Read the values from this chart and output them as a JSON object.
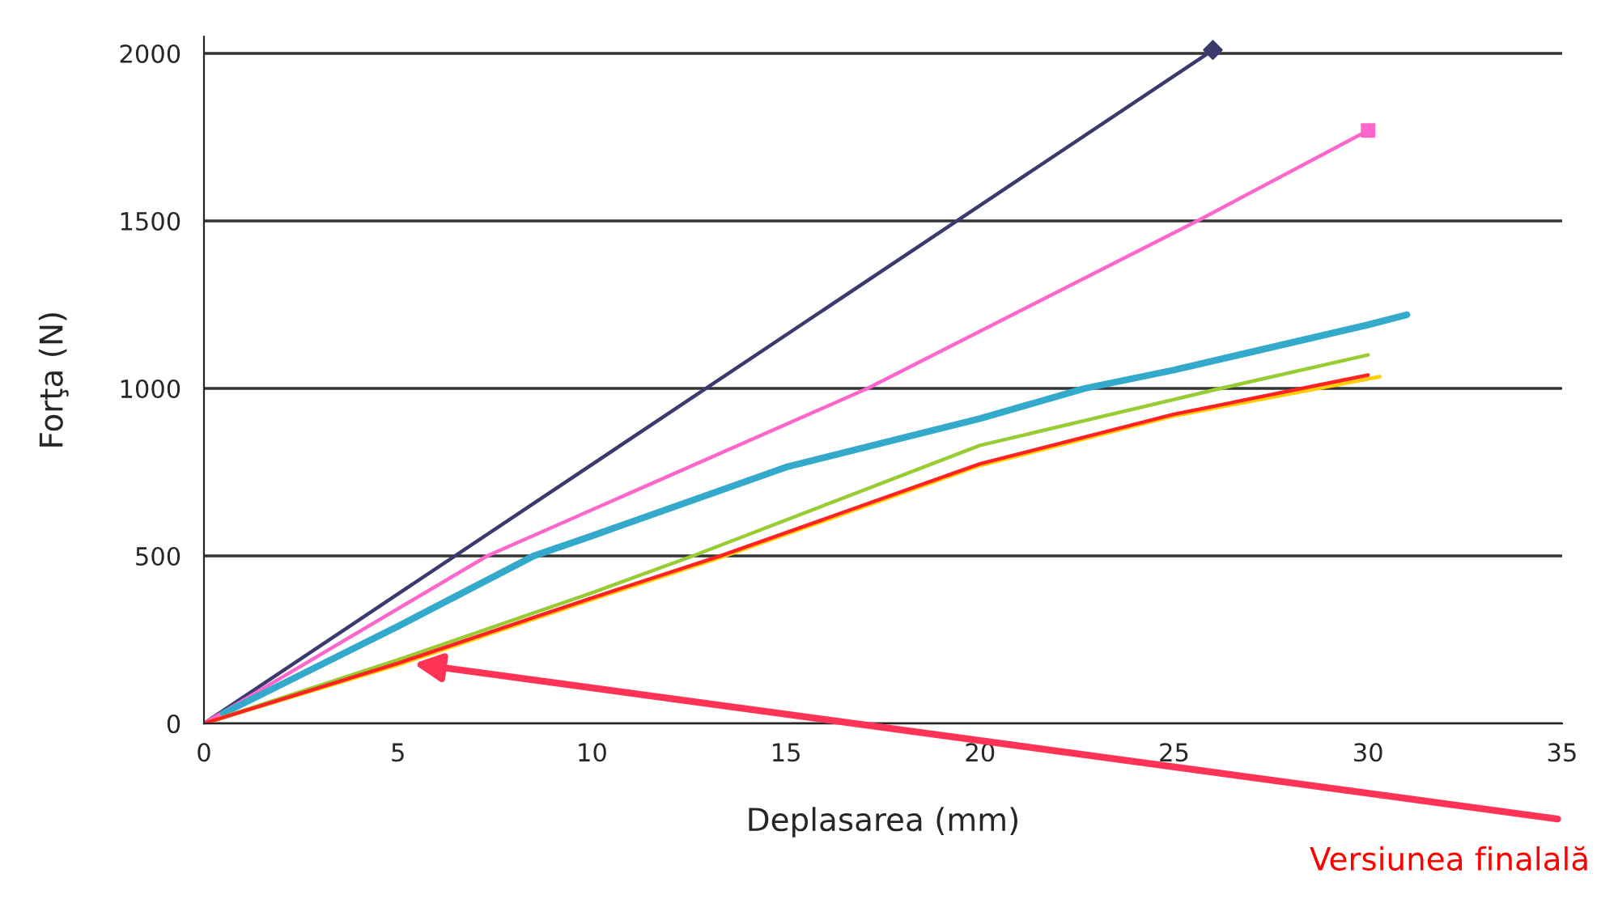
{
  "chart_data": {
    "type": "line",
    "xlabel": "Deplasarea (mm)",
    "ylabel": "Forţa (N)",
    "xlim": [
      0,
      35
    ],
    "ylim": [
      0,
      2050
    ],
    "xticks": [
      0,
      5,
      10,
      15,
      20,
      25,
      30,
      35
    ],
    "yticks": [
      0,
      500,
      1000,
      1500,
      2000
    ],
    "grid": "y",
    "legend": false,
    "series": [
      {
        "color": "#3a3a6e",
        "x": [
          0,
          26
        ],
        "values": [
          0,
          2010
        ]
      },
      {
        "type": "scatter",
        "marker": "diamond",
        "color": "#3a3a6e",
        "x": [
          26
        ],
        "values": [
          2010
        ]
      },
      {
        "color": "#ff66cc",
        "x": [
          0,
          7.3,
          17.1,
          25.6,
          30
        ],
        "values": [
          0,
          500,
          1000,
          1500,
          1770
        ]
      },
      {
        "type": "scatter",
        "marker": "square",
        "color": "#ff66cc",
        "x": [
          30
        ],
        "values": [
          1770
        ]
      },
      {
        "color": "#33aacc",
        "x": [
          0.5,
          5,
          8.5,
          10,
          15,
          20,
          22.7,
          25,
          30,
          31
        ],
        "values": [
          30,
          290,
          500,
          560,
          765,
          910,
          1000,
          1055,
          1190,
          1220
        ]
      },
      {
        "color": "#99cc33",
        "x": [
          0,
          5,
          10,
          12.6,
          20,
          26.2,
          30
        ],
        "values": [
          0,
          190,
          390,
          500,
          830,
          1000,
          1100
        ]
      },
      {
        "color": "#ffcc00",
        "x": [
          0,
          5,
          10,
          13.3,
          20,
          25,
          30.3
        ],
        "values": [
          0,
          175,
          370,
          495,
          770,
          918,
          1035
        ]
      },
      {
        "color": "#ff2222",
        "x": [
          0,
          5,
          10,
          13.3,
          20,
          25,
          30
        ],
        "values": [
          0,
          180,
          375,
          500,
          775,
          923,
          1040
        ]
      }
    ],
    "annotations": [
      "Versiunea finalală"
    ]
  }
}
